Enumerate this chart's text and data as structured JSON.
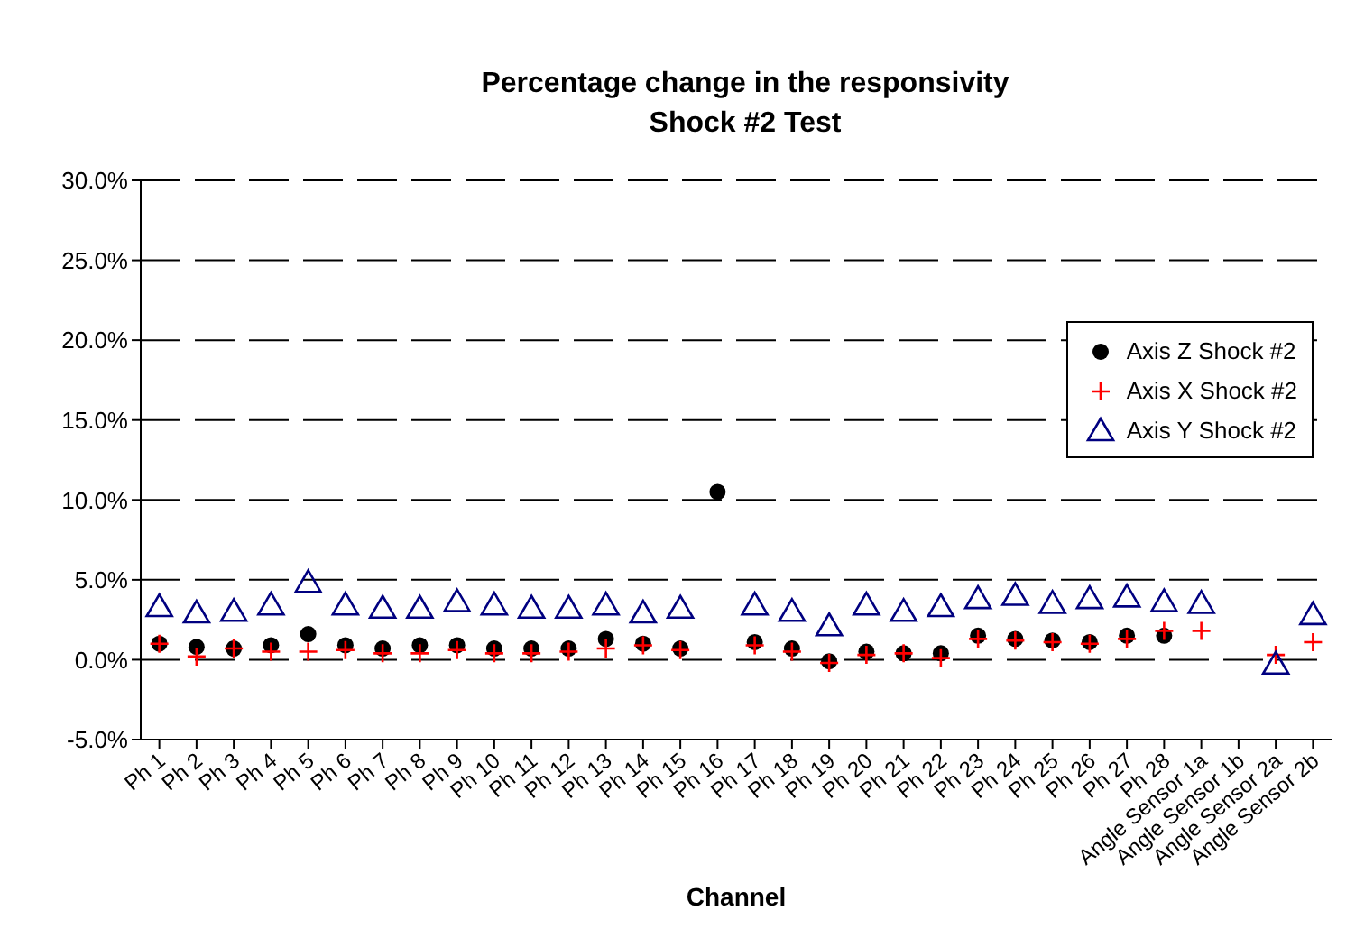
{
  "chart_data": {
    "type": "scatter",
    "title": "Percentage change in the responsivity",
    "subtitle": "Shock #2 Test",
    "xlabel": "Channel",
    "categories": [
      "Ph 1",
      "Ph 2",
      "Ph 3",
      "Ph 4",
      "Ph 5",
      "Ph 6",
      "Ph 7",
      "Ph 8",
      "Ph 9",
      "Ph 10",
      "Ph 11",
      "Ph 12",
      "Ph 13",
      "Ph 14",
      "Ph 15",
      "Ph 16",
      "Ph 17",
      "Ph 18",
      "Ph 19",
      "Ph 20",
      "Ph 21",
      "Ph 22",
      "Ph 23",
      "Ph 24",
      "Ph 25",
      "Ph 26",
      "Ph 27",
      "Ph 28",
      "Angle Sensor 1a",
      "Angle Sensor 1b",
      "Angle Sensor 2a",
      "Angle Sensor 2b"
    ],
    "series": [
      {
        "name": "Axis Z Shock #2",
        "color": "#000000",
        "marker": "circle",
        "values": [
          1.0,
          0.8,
          0.7,
          0.9,
          1.6,
          0.9,
          0.7,
          0.9,
          0.9,
          0.7,
          0.7,
          0.7,
          1.3,
          1.0,
          0.7,
          10.5,
          1.1,
          0.7,
          -0.1,
          0.5,
          0.4,
          0.4,
          1.5,
          1.3,
          1.2,
          1.1,
          1.5,
          1.5,
          null,
          null,
          null,
          null
        ]
      },
      {
        "name": "Axis X Shock #2",
        "color": "#ff0000",
        "marker": "cross",
        "values": [
          1.0,
          0.2,
          0.7,
          0.5,
          0.5,
          0.6,
          0.4,
          0.4,
          0.6,
          0.4,
          0.4,
          0.5,
          0.7,
          0.9,
          0.6,
          null,
          0.9,
          0.5,
          -0.2,
          0.3,
          0.4,
          0.1,
          1.3,
          1.2,
          1.1,
          1.0,
          1.3,
          1.8,
          1.8,
          null,
          0.3,
          1.1
        ]
      },
      {
        "name": "Axis Y Shock #2",
        "color": "#000080",
        "marker": "triangle",
        "values": [
          3.3,
          2.9,
          3.0,
          3.4,
          4.8,
          3.4,
          3.2,
          3.2,
          3.6,
          3.4,
          3.2,
          3.2,
          3.4,
          2.9,
          3.2,
          null,
          3.4,
          3.0,
          2.1,
          3.4,
          3.0,
          3.3,
          3.8,
          4.0,
          3.5,
          3.8,
          3.9,
          3.6,
          3.5,
          null,
          -0.3,
          2.8
        ]
      }
    ],
    "ylim": [
      -5,
      30
    ],
    "yticks": [
      {
        "value": -5,
        "label": "-5.0%"
      },
      {
        "value": 0,
        "label": "0.0%"
      },
      {
        "value": 5,
        "label": "5.0%"
      },
      {
        "value": 10,
        "label": "10.0%"
      },
      {
        "value": 15,
        "label": "15.0%"
      },
      {
        "value": 20,
        "label": "20.0%"
      },
      {
        "value": 25,
        "label": "25.0%"
      },
      {
        "value": 30,
        "label": "30.0%"
      }
    ],
    "grid": "y",
    "line_style": "dashed",
    "legend": "top right"
  }
}
